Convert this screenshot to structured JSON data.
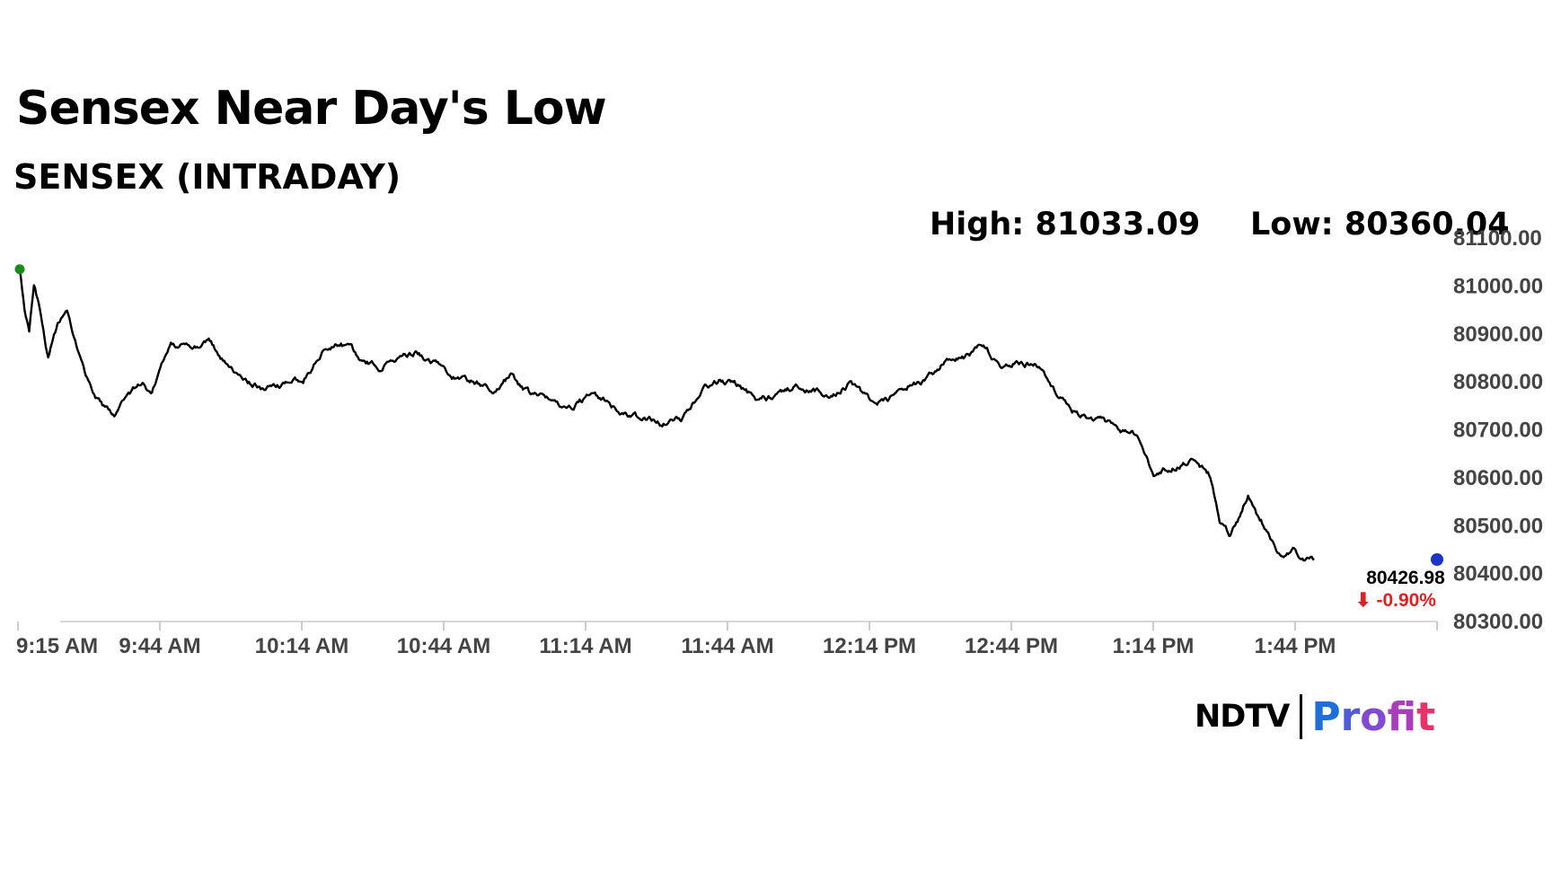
{
  "headline": "Sensex Near Day's Low",
  "subheadline": "SENSEX (INTRADAY)",
  "stats": {
    "high_label": "High: 81033.09",
    "low_label": "Low: 80360.04"
  },
  "brand": {
    "part1": "NDTV",
    "part2": "Profit",
    "part2_colors": [
      "#1e6fd9",
      "#9b3fd1",
      "#e8336a"
    ]
  },
  "chart_data": {
    "type": "line",
    "title": "Sensex Near Day's Low",
    "subtitle": "SENSEX (INTRADAY)",
    "xlabel": "",
    "ylabel": "",
    "x_ticks": [
      "9:15 AM",
      "9:44 AM",
      "10:14 AM",
      "10:44 AM",
      "11:14 AM",
      "11:44 AM",
      "12:14 PM",
      "12:44 PM",
      "1:14 PM",
      "1:44 PM"
    ],
    "y_ticks": [
      "80300.00",
      "80400.00",
      "80500.00",
      "80600.00",
      "80700.00",
      "80800.00",
      "80900.00",
      "81000.00",
      "81100.00"
    ],
    "ylim": [
      80300,
      81100
    ],
    "x_range_minutes_after_open": [
      0,
      150
    ],
    "grid": false,
    "line_color": "#000000",
    "series": [
      {
        "x_minutes": [
          0,
          0.5,
          1,
          1.5,
          2,
          3,
          4,
          5,
          6,
          7,
          8,
          9,
          10,
          11,
          12,
          13,
          14,
          15,
          16,
          18,
          20,
          22,
          24,
          26,
          28,
          30,
          32,
          34,
          36,
          38,
          40,
          42,
          44,
          46,
          48,
          50,
          52,
          54,
          56,
          58,
          60,
          62,
          64,
          66,
          68,
          70,
          72,
          74,
          76,
          78,
          80,
          82,
          84,
          86,
          88,
          90,
          92,
          94,
          96,
          98,
          100,
          102,
          104,
          106,
          108,
          110,
          112,
          114,
          116,
          118,
          119,
          120,
          121,
          122,
          123,
          124,
          125,
          126,
          127,
          128,
          129,
          130,
          131,
          132,
          133,
          134,
          135,
          136,
          137,
          138,
          139,
          140,
          141
        ],
        "values": [
          81033,
          80950,
          80910,
          81000,
          80960,
          80850,
          80920,
          80940,
          80870,
          80800,
          80760,
          80740,
          80720,
          80760,
          80780,
          80790,
          80775,
          80830,
          80870,
          80875,
          80880,
          80830,
          80800,
          80780,
          80790,
          80800,
          80860,
          80880,
          80850,
          80830,
          80850,
          80860,
          80840,
          80810,
          80800,
          80780,
          80810,
          80770,
          80760,
          80745,
          80765,
          80760,
          80730,
          80720,
          80710,
          80720,
          80780,
          80800,
          80790,
          80760,
          80770,
          80790,
          80780,
          80770,
          80800,
          80760,
          80760,
          80790,
          80800,
          80840,
          80850,
          80870,
          80830,
          80840,
          80830,
          80770,
          80730,
          80720,
          80700,
          80690,
          80650,
          80600,
          80610,
          80620,
          80625,
          80630,
          80620,
          80600,
          80500,
          80480,
          80510,
          80560,
          80520,
          80490,
          80450,
          80440,
          80450,
          80430,
          80426.98,
          null,
          null,
          null,
          null
        ],
        "end_value": "80426.98",
        "end_change": "⬇ -0.90%",
        "end_change_color": "#e02020",
        "start_marker_color": "#1a8a1a",
        "end_marker_color": "#1a35c8"
      }
    ]
  }
}
